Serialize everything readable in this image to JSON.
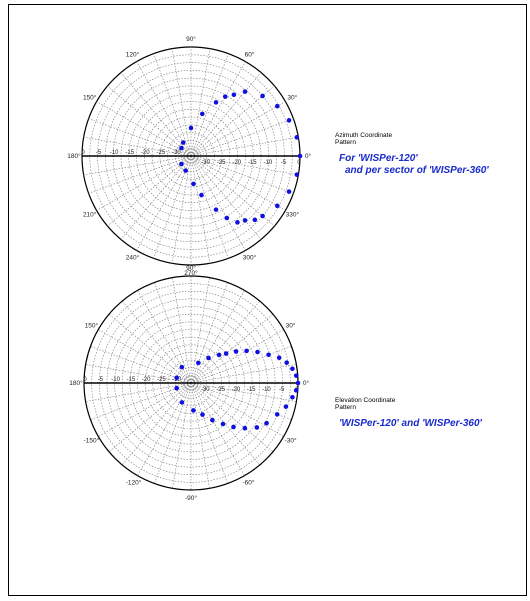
{
  "colors": {
    "grid": "#7a7a7a",
    "axis": "#000000",
    "points": "#1010e0",
    "caption_blue": "#1a2bcc"
  },
  "azimuth": {
    "caption_line1": "Azimuth Coordinate",
    "caption_line2": "Pattern",
    "note_line1": "For 'WISPer-120'",
    "note_line2": "and per sector of 'WISPer-360'"
  },
  "elevation": {
    "caption_line1": "Elevation Coordinate",
    "caption_line2": "Pattern",
    "note_line1": "'WISPer-120' and 'WISPer-360'"
  },
  "chart_data": [
    {
      "type": "scatter",
      "coordinate": "polar",
      "name": "Azimuth Coordinate Pattern",
      "radial_range": [
        -35,
        0
      ],
      "radial_ticks": [
        "0",
        "-5",
        "-10",
        "-15",
        "-20",
        "-25",
        "-30"
      ],
      "angle_labels": [
        {
          "angle": 0,
          "label": "0°"
        },
        {
          "angle": 30,
          "label": "30°"
        },
        {
          "angle": 60,
          "label": "60°"
        },
        {
          "angle": 90,
          "label": "90°"
        },
        {
          "angle": 120,
          "label": "120°"
        },
        {
          "angle": 150,
          "label": "150°"
        },
        {
          "angle": 180,
          "label": "180°"
        },
        {
          "angle": 210,
          "label": "210°"
        },
        {
          "angle": 240,
          "label": "240°"
        },
        {
          "angle": 270,
          "label": "270°"
        },
        {
          "angle": 300,
          "label": "300°"
        },
        {
          "angle": 330,
          "label": "330°"
        }
      ],
      "points": [
        {
          "angle": 0,
          "value": 0
        },
        {
          "angle": 10,
          "value": -0.5
        },
        {
          "angle": 20,
          "value": -1.5
        },
        {
          "angle": 30,
          "value": -3
        },
        {
          "angle": 40,
          "value": -5
        },
        {
          "angle": 50,
          "value": -8
        },
        {
          "angle": 55,
          "value": -11
        },
        {
          "angle": 60,
          "value": -13
        },
        {
          "angle": 65,
          "value": -16
        },
        {
          "angle": 75,
          "value": -21
        },
        {
          "angle": 90,
          "value": -26
        },
        {
          "angle": 120,
          "value": -30
        },
        {
          "angle": 140,
          "value": -31
        },
        {
          "angle": 220,
          "value": -31
        },
        {
          "angle": 250,
          "value": -30
        },
        {
          "angle": 275,
          "value": -26
        },
        {
          "angle": 285,
          "value": -22
        },
        {
          "angle": 295,
          "value": -16
        },
        {
          "angle": 300,
          "value": -12
        },
        {
          "angle": 305,
          "value": -9
        },
        {
          "angle": 310,
          "value": -8
        },
        {
          "angle": 315,
          "value": -6
        },
        {
          "angle": 320,
          "value": -5
        },
        {
          "angle": 330,
          "value": -3
        },
        {
          "angle": 340,
          "value": -1.5
        },
        {
          "angle": 350,
          "value": -0.5
        }
      ]
    },
    {
      "type": "scatter",
      "coordinate": "polar",
      "name": "Elevation Coordinate Pattern",
      "radial_range": [
        -35,
        0
      ],
      "radial_ticks": [
        "0",
        "-5",
        "-10",
        "-15",
        "-20",
        "-25",
        "-30"
      ],
      "angle_labels": [
        {
          "angle": 0,
          "label": "0°"
        },
        {
          "angle": 30,
          "label": "30°"
        },
        {
          "angle": 90,
          "label": "90°"
        },
        {
          "angle": 150,
          "label": "150°"
        },
        {
          "angle": 180,
          "label": "180°"
        },
        {
          "angle": -150,
          "label": "-150°"
        },
        {
          "angle": -120,
          "label": "-120°"
        },
        {
          "angle": -90,
          "label": "-90°"
        },
        {
          "angle": -60,
          "label": "-60°"
        },
        {
          "angle": -30,
          "label": "-30°"
        }
      ],
      "points": [
        {
          "angle": 0,
          "value": 0
        },
        {
          "angle": 4,
          "value": -0.5
        },
        {
          "angle": 8,
          "value": -1.5
        },
        {
          "angle": 12,
          "value": -3
        },
        {
          "angle": 16,
          "value": -5
        },
        {
          "angle": 20,
          "value": -8
        },
        {
          "angle": 25,
          "value": -11
        },
        {
          "angle": 30,
          "value": -14
        },
        {
          "angle": 35,
          "value": -17
        },
        {
          "angle": 40,
          "value": -20
        },
        {
          "angle": 45,
          "value": -22
        },
        {
          "angle": 55,
          "value": -25
        },
        {
          "angle": 70,
          "value": -28
        },
        {
          "angle": 120,
          "value": -29
        },
        {
          "angle": 160,
          "value": -30
        },
        {
          "angle": 200,
          "value": -30
        },
        {
          "angle": 245,
          "value": -28
        },
        {
          "angle": 275,
          "value": -26
        },
        {
          "angle": 290,
          "value": -24
        },
        {
          "angle": 300,
          "value": -21
        },
        {
          "angle": 308,
          "value": -18
        },
        {
          "angle": 314,
          "value": -15
        },
        {
          "angle": 320,
          "value": -12
        },
        {
          "angle": 326,
          "value": -9
        },
        {
          "angle": 332,
          "value": -7
        },
        {
          "angle": 340,
          "value": -5
        },
        {
          "angle": 346,
          "value": -3
        },
        {
          "angle": 352,
          "value": -1.5
        },
        {
          "angle": 356,
          "value": -0.5
        }
      ]
    }
  ]
}
